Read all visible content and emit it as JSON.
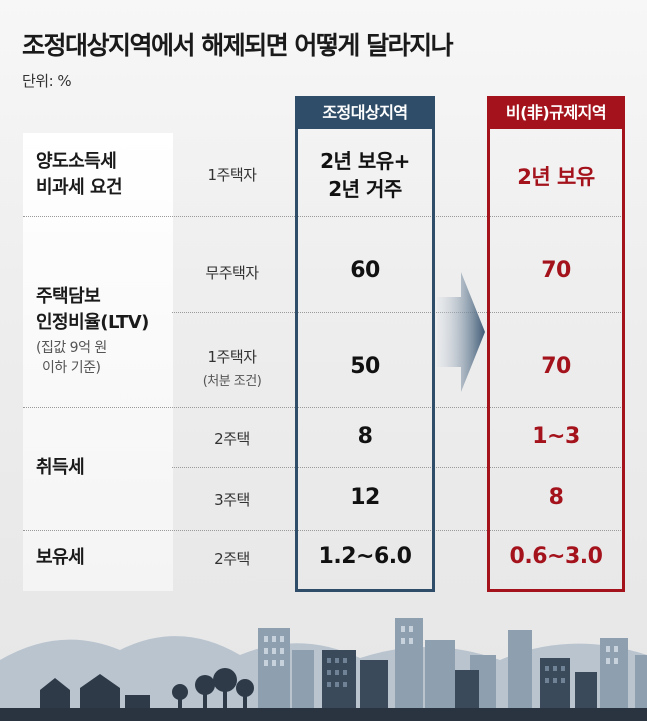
{
  "title": "조정대상지역에서 해제되면 어떻게 달라지나",
  "unit": "단위: %",
  "columns": {
    "regulated": "조정대상지역",
    "unregulated": "비(非)규제지역"
  },
  "rows": {
    "tax_exempt": {
      "label_line1": "양도소득세",
      "label_line2": "비과세 요건",
      "category": "1주택자",
      "regulated_line1": "2년 보유+",
      "regulated_line2": "2년 거주",
      "unregulated": "2년 보유"
    },
    "ltv": {
      "label_line1": "주택담보",
      "label_line2": "인정비율(LTV)",
      "note_line1": "(집값 9억 원",
      "note_line2": "이하 기준)",
      "no_house": {
        "category": "무주택자",
        "regulated": "60",
        "unregulated": "70"
      },
      "one_house": {
        "category": "1주택자",
        "sub": "(처분 조건)",
        "regulated": "50",
        "unregulated": "70"
      }
    },
    "acquisition": {
      "label": "취득세",
      "two_house": {
        "category": "2주택",
        "regulated": "8",
        "unregulated": "1~3"
      },
      "three_house": {
        "category": "3주택",
        "regulated": "12",
        "unregulated": "8"
      }
    },
    "holding": {
      "label": "보유세",
      "category": "2주택",
      "regulated": "1.2~6.0",
      "unregulated": "0.6~3.0"
    }
  },
  "colors": {
    "regulated": "#2f4d68",
    "unregulated": "#a4121c"
  }
}
